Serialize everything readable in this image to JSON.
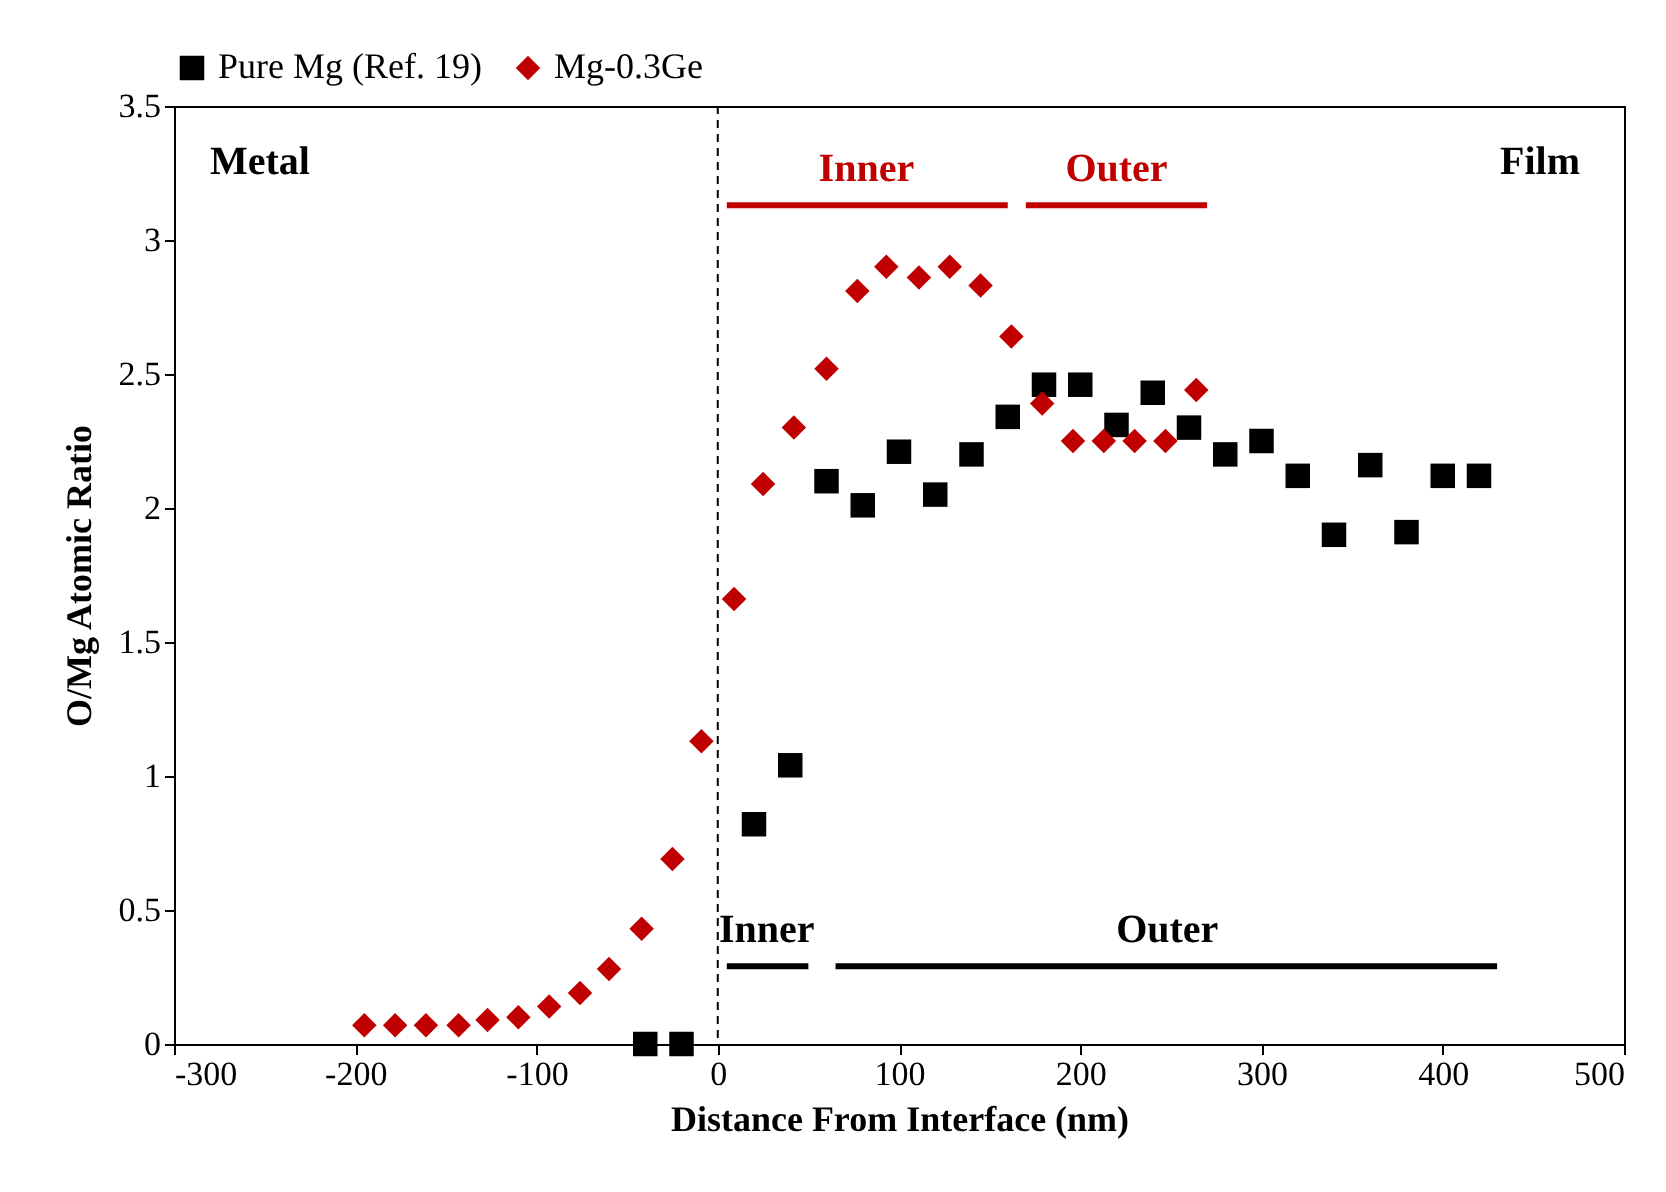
{
  "chart_data": {
    "type": "scatter",
    "xlabel": "Distance From Interface (nm)",
    "ylabel": "O/Mg Atomic Ratio",
    "xlim": [
      -300,
      500
    ],
    "ylim": [
      0,
      3.5
    ],
    "xticks": [
      -300,
      -200,
      -100,
      0,
      100,
      200,
      300,
      400,
      500
    ],
    "yticks": [
      0,
      0.5,
      1,
      1.5,
      2,
      2.5,
      3,
      3.5
    ],
    "grid": false,
    "legend": "top",
    "series": [
      {
        "name": "Pure Mg (Ref. 19)",
        "color": "#000000",
        "marker": "square",
        "x": [
          -40,
          -20,
          20,
          40,
          60,
          80,
          100,
          120,
          140,
          160,
          180,
          200,
          220,
          240,
          260,
          280,
          300,
          320,
          340,
          360,
          380,
          400,
          420
        ],
        "values": [
          0.0,
          0.0,
          0.82,
          1.04,
          2.1,
          2.01,
          2.21,
          2.05,
          2.2,
          2.34,
          2.46,
          2.46,
          2.31,
          2.43,
          2.3,
          2.2,
          2.25,
          2.12,
          1.9,
          2.16,
          1.91,
          2.12,
          2.12
        ]
      },
      {
        "name": "Mg-0.3Ge",
        "color": "#c00000",
        "marker": "diamond",
        "x": [
          -195,
          -178,
          -161,
          -143,
          -127,
          -110,
          -93,
          -76,
          -60,
          -42,
          -25,
          -9,
          9,
          25,
          42,
          60,
          77,
          93,
          111,
          128,
          145,
          162,
          179,
          196,
          213,
          230,
          247,
          264
        ],
        "values": [
          0.07,
          0.07,
          0.07,
          0.07,
          0.09,
          0.1,
          0.14,
          0.19,
          0.28,
          0.43,
          0.69,
          1.13,
          1.66,
          2.09,
          2.3,
          2.52,
          2.81,
          2.9,
          2.86,
          2.9,
          2.83,
          2.64,
          2.39,
          2.25,
          2.25,
          2.25,
          2.25,
          2.44
        ]
      },
      {
        "type": "line",
        "color": "#c00000",
        "x": [
          5,
          160
        ],
        "values": [
          3.13,
          3.13
        ]
      },
      {
        "type": "line",
        "color": "#c00000",
        "x": [
          170,
          270
        ],
        "values": [
          3.13,
          3.13
        ]
      },
      {
        "type": "line",
        "color": "#000000",
        "x": [
          5,
          50
        ],
        "values": [
          0.29,
          0.29
        ]
      },
      {
        "type": "line",
        "color": "#000000",
        "x": [
          65,
          430
        ],
        "values": [
          0.29,
          0.29
        ]
      }
    ],
    "ref_lines": [
      {
        "axis": "x",
        "value": 0,
        "color": "#000000",
        "line_style": "dashed"
      }
    ],
    "annotations": [
      "Metal",
      "Film",
      {
        "text": "Inner",
        "x": 82,
        "y": 3.13
      },
      {
        "text": "Outer",
        "x": 220,
        "y": 3.13
      },
      {
        "text": "Inner",
        "x": 27,
        "y": 0.29
      },
      {
        "text": "Outer",
        "x": 248,
        "y": 0.29
      }
    ]
  }
}
